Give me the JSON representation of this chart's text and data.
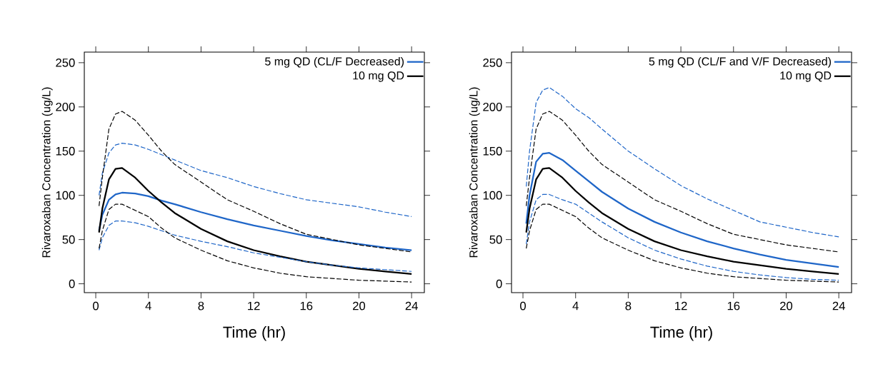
{
  "chart_data": [
    {
      "type": "line",
      "xlabel": "Time (hr)",
      "ylabel": "Rivaroxaban Concentration (ug/L)",
      "xlim": [
        -0.87,
        24.97
      ],
      "ylim": [
        -10,
        262
      ],
      "xticks": [
        0,
        4,
        8,
        12,
        16,
        20,
        24
      ],
      "yticks": [
        0,
        50,
        100,
        150,
        200,
        250
      ],
      "legend": "top right",
      "x": [
        0.25,
        0.5,
        1,
        1.5,
        2,
        3,
        4,
        5,
        6,
        8,
        10,
        12,
        14,
        16,
        18,
        20,
        22,
        24
      ],
      "series": [
        {
          "name": "5 mg QD (CL/F Decreased)",
          "color": "#1f66c8",
          "line_style": "solid",
          "values": [
            60,
            78,
            95,
            101,
            103,
            102,
            99,
            94,
            90,
            81,
            73,
            66,
            60,
            54,
            49,
            45,
            41,
            38
          ]
        },
        {
          "name": "10 mg QD",
          "color": "#000000",
          "line_style": "solid",
          "values": [
            58,
            85,
            118,
            130,
            131,
            120,
            105,
            92,
            80,
            62,
            48,
            38,
            31,
            25,
            21,
            17,
            14,
            11
          ]
        },
        {
          "color": "#1f66c8",
          "line_style": "dashed",
          "values": [
            100,
            125,
            148,
            157,
            159,
            157,
            152,
            146,
            140,
            128,
            120,
            110,
            102,
            95,
            91,
            87,
            81,
            76
          ]
        },
        {
          "color": "#1f66c8",
          "line_style": "dashed",
          "values": [
            38,
            52,
            66,
            71,
            71,
            69,
            65,
            60,
            55,
            48,
            42,
            35,
            30,
            25,
            21,
            18,
            16,
            14
          ]
        },
        {
          "color": "#000000",
          "line_style": "dashed",
          "values": [
            88,
            120,
            175,
            192,
            195,
            185,
            168,
            150,
            135,
            115,
            95,
            82,
            68,
            56,
            50,
            44,
            40,
            36
          ]
        },
        {
          "color": "#000000",
          "line_style": "dashed",
          "values": [
            40,
            60,
            84,
            90,
            90,
            83,
            76,
            63,
            52,
            38,
            26,
            18,
            12,
            8,
            6,
            4,
            3,
            2
          ]
        }
      ]
    },
    {
      "type": "line",
      "xlabel": "Time (hr)",
      "ylabel": "Rivaroxaban Concentration (ug/L)",
      "xlim": [
        -0.87,
        24.97
      ],
      "ylim": [
        -10,
        262
      ],
      "xticks": [
        0,
        4,
        8,
        12,
        16,
        20,
        24
      ],
      "yticks": [
        0,
        50,
        100,
        150,
        200,
        250
      ],
      "legend": "top right",
      "x": [
        0.25,
        0.5,
        1,
        1.5,
        2,
        3,
        4,
        5,
        6,
        8,
        10,
        12,
        14,
        16,
        18,
        20,
        22,
        24
      ],
      "series": [
        {
          "name": "5 mg QD (CL/F and V/F Decreased)",
          "color": "#1f66c8",
          "line_style": "solid",
          "values": [
            68,
            100,
            138,
            147,
            148,
            140,
            128,
            116,
            104,
            85,
            70,
            58,
            48,
            40,
            33,
            27,
            23,
            19
          ]
        },
        {
          "name": "10 mg QD",
          "color": "#000000",
          "line_style": "solid",
          "values": [
            58,
            85,
            118,
            130,
            131,
            120,
            105,
            92,
            80,
            62,
            48,
            38,
            31,
            25,
            21,
            17,
            14,
            11
          ]
        },
        {
          "color": "#1f66c8",
          "line_style": "dashed",
          "values": [
            110,
            150,
            205,
            219,
            222,
            212,
            198,
            188,
            175,
            150,
            130,
            111,
            96,
            83,
            70,
            64,
            58,
            53
          ]
        },
        {
          "color": "#1f66c8",
          "line_style": "dashed",
          "values": [
            45,
            70,
            95,
            101,
            101,
            95,
            90,
            80,
            70,
            52,
            38,
            28,
            20,
            14,
            10,
            7,
            5,
            4
          ]
        },
        {
          "color": "#000000",
          "line_style": "dashed",
          "values": [
            88,
            120,
            175,
            192,
            195,
            185,
            168,
            150,
            135,
            115,
            95,
            82,
            68,
            56,
            50,
            44,
            40,
            36
          ]
        },
        {
          "color": "#000000",
          "line_style": "dashed",
          "values": [
            40,
            60,
            84,
            90,
            90,
            83,
            76,
            63,
            52,
            38,
            26,
            18,
            12,
            8,
            6,
            4,
            3,
            2
          ]
        }
      ]
    }
  ]
}
